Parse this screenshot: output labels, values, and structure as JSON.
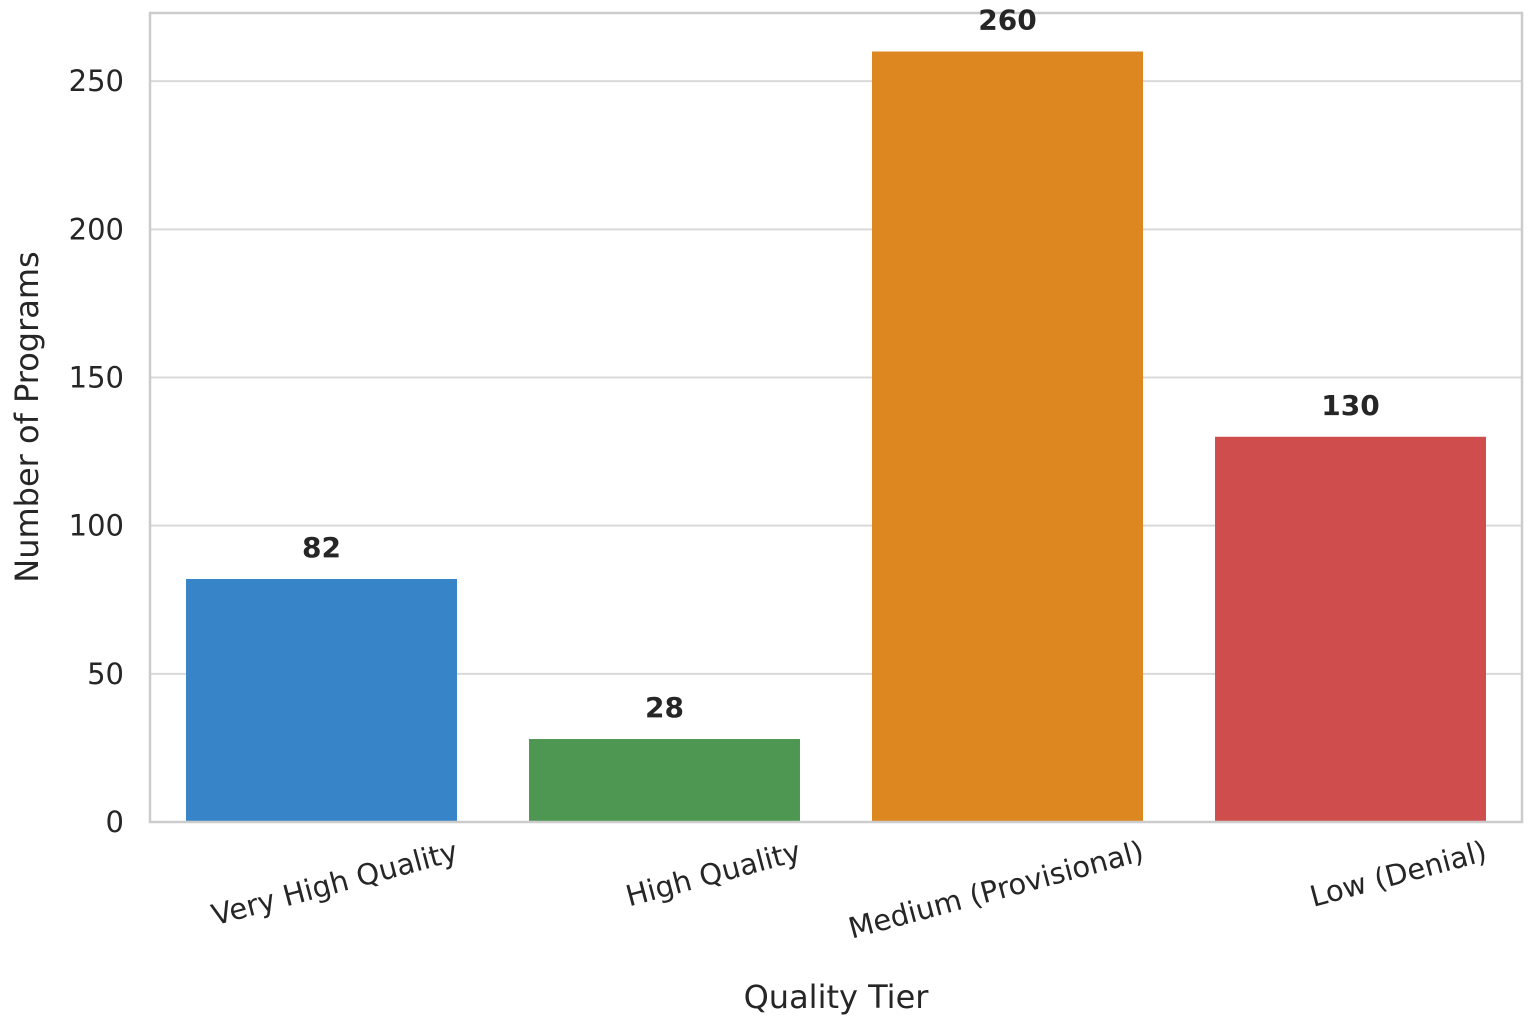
{
  "chart_data": {
    "type": "bar",
    "title": "",
    "xlabel": "Quality Tier",
    "ylabel": "Number of Programs",
    "categories": [
      "Very High Quality",
      "High Quality",
      "Medium (Provisional)",
      "Low (Denial)"
    ],
    "values": [
      82,
      28,
      260,
      130
    ],
    "value_labels": [
      "82",
      "28",
      "260",
      "130"
    ],
    "colors": [
      "#3785c8",
      "#4e9752",
      "#dc8720",
      "#cf4e4d"
    ],
    "ylim": [
      0,
      273
    ],
    "yticks": [
      0,
      50,
      100,
      150,
      200,
      250
    ],
    "ytick_labels": [
      "0",
      "50",
      "100",
      "150",
      "200",
      "250"
    ],
    "grid": true,
    "legend": "none"
  }
}
